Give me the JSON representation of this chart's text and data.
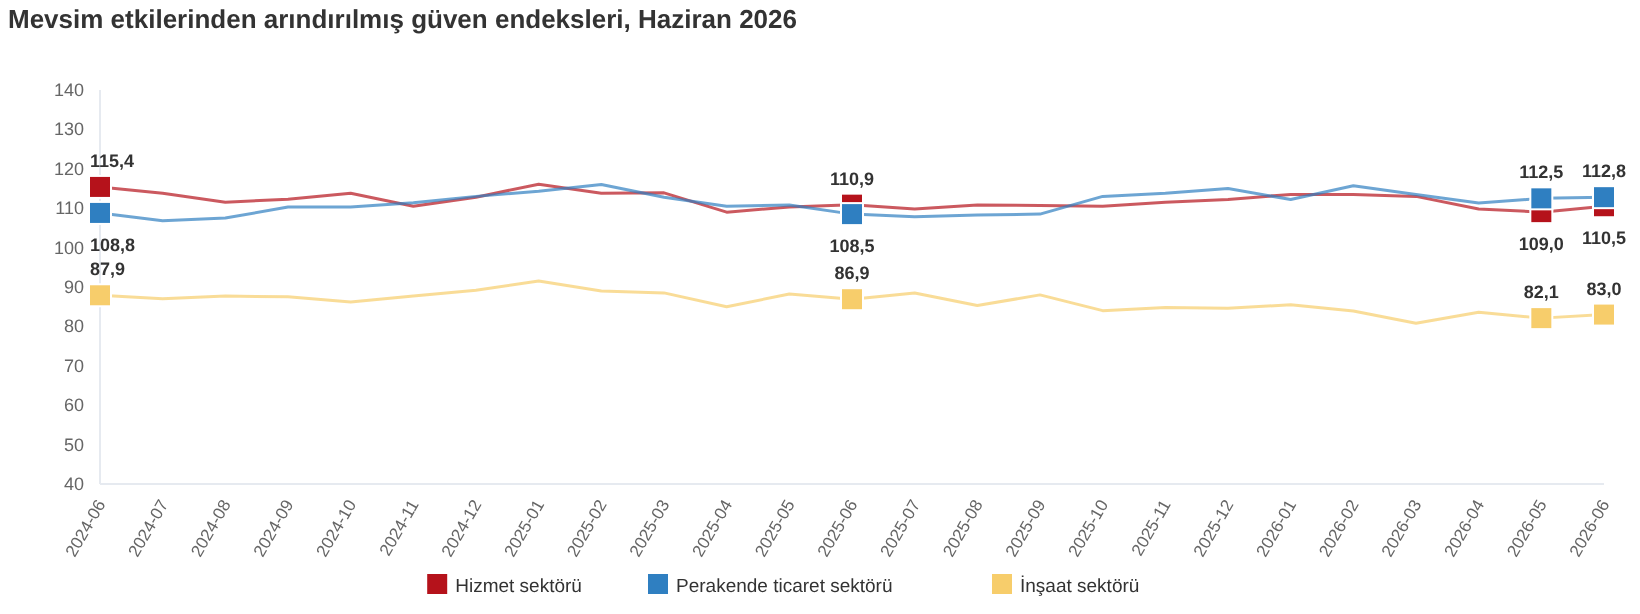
{
  "chart_data": {
    "type": "line",
    "title": "Mevsim etkilerinden arındırılmış güven endeksleri, Haziran 2026",
    "categories": [
      "2024-06",
      "2024-07",
      "2024-08",
      "2024-09",
      "2024-10",
      "2024-11",
      "2024-12",
      "2025-01",
      "2025-02",
      "2025-03",
      "2025-04",
      "2025-05",
      "2025-06",
      "2025-07",
      "2025-08",
      "2025-09",
      "2025-10",
      "2025-11",
      "2025-12",
      "2026-01",
      "2026-02",
      "2026-03",
      "2026-04",
      "2026-05",
      "2026-06"
    ],
    "series": [
      {
        "name": "Hizmet sektörü",
        "color": "#b5121b",
        "values": [
          115.4,
          113.8,
          111.5,
          112.3,
          113.8,
          110.5,
          112.8,
          116.1,
          113.8,
          113.9,
          109.0,
          110.3,
          110.9,
          109.8,
          110.8,
          110.7,
          110.5,
          111.5,
          112.2,
          113.5,
          113.5,
          113.0,
          109.8,
          109.0,
          110.5
        ],
        "value_labels": [
          "115,4",
          null,
          null,
          null,
          null,
          null,
          null,
          null,
          null,
          null,
          null,
          null,
          "110,9",
          null,
          null,
          null,
          null,
          null,
          null,
          null,
          null,
          null,
          null,
          "109,0",
          "110,5"
        ]
      },
      {
        "name": "Perakende ticaret sektörü",
        "color": "#2f7fc1",
        "values": [
          108.8,
          106.8,
          107.5,
          110.3,
          110.3,
          111.4,
          113.0,
          114.3,
          116.0,
          112.8,
          110.5,
          110.8,
          108.5,
          107.8,
          108.3,
          108.5,
          113.0,
          113.8,
          115.0,
          112.2,
          115.7,
          113.5,
          111.3,
          112.5,
          112.8
        ],
        "value_labels": [
          "108,8",
          null,
          null,
          null,
          null,
          null,
          null,
          null,
          null,
          null,
          null,
          null,
          "108,5",
          null,
          null,
          null,
          null,
          null,
          null,
          null,
          null,
          null,
          null,
          "112,5",
          "112,8"
        ]
      },
      {
        "name": "İnşaat sektörü",
        "color": "#f7cd6b",
        "values": [
          87.9,
          87.0,
          87.7,
          87.5,
          86.2,
          87.7,
          89.2,
          91.5,
          89.0,
          88.5,
          85.0,
          88.2,
          86.9,
          88.5,
          85.3,
          88.0,
          84.0,
          84.8,
          84.6,
          85.5,
          83.9,
          80.8,
          83.6,
          82.1,
          83.0
        ],
        "value_labels": [
          "87,9",
          null,
          null,
          null,
          null,
          null,
          null,
          null,
          null,
          null,
          null,
          null,
          "86,9",
          null,
          null,
          null,
          null,
          null,
          null,
          null,
          null,
          null,
          null,
          "82,1",
          "83,0"
        ]
      }
    ],
    "ylim": [
      40,
      140
    ],
    "yticks": [
      40,
      50,
      60,
      70,
      80,
      90,
      100,
      110,
      120,
      130,
      140
    ],
    "grid": false,
    "legend": "bottom",
    "line_style": "solid"
  }
}
